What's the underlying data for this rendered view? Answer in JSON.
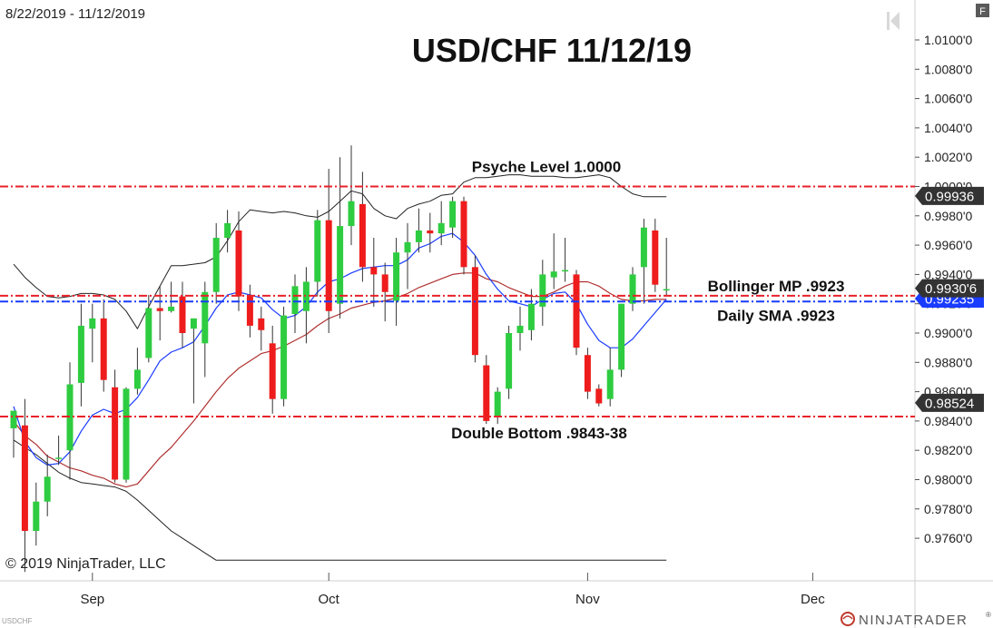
{
  "header": {
    "date_range": "8/22/2019 - 11/12/2019",
    "panel_button": "F",
    "copyright": "© 2019 NinjaTrader, LLC",
    "symbol_watermark": "USDCHF",
    "brand": "NINJATRADER",
    "brand_mark": "®"
  },
  "colors": {
    "up": "#2ecc40",
    "down": "#ee1c1c",
    "bollinger_band": "#222222",
    "bollinger_mid": "#b03030",
    "sma": "#1a3cff",
    "level_red": "#e8202a",
    "level_blue": "#1a3cff"
  },
  "chart_data": {
    "type": "candlestick",
    "title": "USD/CHF 11/12/19",
    "ylim": [
      0.9745,
      1.012
    ],
    "y_ticks": [
      {
        "value": 1.01,
        "label": "1.0100'0"
      },
      {
        "value": 1.008,
        "label": "1.0080'0"
      },
      {
        "value": 1.006,
        "label": "1.0060'0"
      },
      {
        "value": 1.004,
        "label": "1.0040'0"
      },
      {
        "value": 1.002,
        "label": "1.0020'0"
      },
      {
        "value": 1.0,
        "label": "1.0000'0"
      },
      {
        "value": 0.998,
        "label": "0.9980'0"
      },
      {
        "value": 0.996,
        "label": "0.9960'0"
      },
      {
        "value": 0.994,
        "label": "0.9940'0"
      },
      {
        "value": 0.992,
        "label": "0.9920'0"
      },
      {
        "value": 0.99,
        "label": "0.9900'0"
      },
      {
        "value": 0.988,
        "label": "0.9880'0"
      },
      {
        "value": 0.986,
        "label": "0.9860'0"
      },
      {
        "value": 0.984,
        "label": "0.9840'0"
      },
      {
        "value": 0.982,
        "label": "0.9820'0"
      },
      {
        "value": 0.98,
        "label": "0.9800'0"
      },
      {
        "value": 0.978,
        "label": "0.9780'0"
      },
      {
        "value": 0.976,
        "label": "0.9760'0"
      }
    ],
    "x_ticks": [
      {
        "index": 7,
        "label": "Sep"
      },
      {
        "index": 28,
        "label": "Oct"
      },
      {
        "index": 51,
        "label": "Nov"
      },
      {
        "index": 71,
        "label": "Dec"
      }
    ],
    "ohlc": [
      {
        "o": 0.9835,
        "h": 0.9845,
        "l": 0.9815,
        "c": 0.9847
      },
      {
        "o": 0.9837,
        "h": 0.9855,
        "l": 0.9737,
        "c": 0.9765
      },
      {
        "o": 0.9765,
        "h": 0.9798,
        "l": 0.9755,
        "c": 0.9785
      },
      {
        "o": 0.9785,
        "h": 0.9817,
        "l": 0.9775,
        "c": 0.9802
      },
      {
        "o": 0.9815,
        "h": 0.983,
        "l": 0.981,
        "c": 0.9815
      },
      {
        "o": 0.982,
        "h": 0.988,
        "l": 0.98,
        "c": 0.9865
      },
      {
        "o": 0.9866,
        "h": 0.992,
        "l": 0.985,
        "c": 0.9905
      },
      {
        "o": 0.9903,
        "h": 0.992,
        "l": 0.988,
        "c": 0.991
      },
      {
        "o": 0.991,
        "h": 0.9923,
        "l": 0.986,
        "c": 0.9868
      },
      {
        "o": 0.9863,
        "h": 0.9875,
        "l": 0.9798,
        "c": 0.98
      },
      {
        "o": 0.98,
        "h": 0.9863,
        "l": 0.9798,
        "c": 0.9862
      },
      {
        "o": 0.9862,
        "h": 0.989,
        "l": 0.9858,
        "c": 0.9875
      },
      {
        "o": 0.9883,
        "h": 0.9926,
        "l": 0.988,
        "c": 0.9917
      },
      {
        "o": 0.9917,
        "h": 0.9932,
        "l": 0.9895,
        "c": 0.9915
      },
      {
        "o": 0.9915,
        "h": 0.9935,
        "l": 0.9914,
        "c": 0.9918
      },
      {
        "o": 0.9925,
        "h": 0.9935,
        "l": 0.989,
        "c": 0.99
      },
      {
        "o": 0.9903,
        "h": 0.991,
        "l": 0.9852,
        "c": 0.991
      },
      {
        "o": 0.9893,
        "h": 0.9935,
        "l": 0.987,
        "c": 0.9928
      },
      {
        "o": 0.9928,
        "h": 0.9975,
        "l": 0.992,
        "c": 0.9965
      },
      {
        "o": 0.9965,
        "h": 0.9984,
        "l": 0.9955,
        "c": 0.9975
      },
      {
        "o": 0.997,
        "h": 0.9983,
        "l": 0.9915,
        "c": 0.9925
      },
      {
        "o": 0.9925,
        "h": 0.9933,
        "l": 0.9897,
        "c": 0.9905
      },
      {
        "o": 0.991,
        "h": 0.9918,
        "l": 0.9888,
        "c": 0.9902
      },
      {
        "o": 0.9893,
        "h": 0.9905,
        "l": 0.9845,
        "c": 0.9855
      },
      {
        "o": 0.9855,
        "h": 0.9918,
        "l": 0.985,
        "c": 0.9912
      },
      {
        "o": 0.9913,
        "h": 0.994,
        "l": 0.99,
        "c": 0.9932
      },
      {
        "o": 0.9915,
        "h": 0.9945,
        "l": 0.9893,
        "c": 0.9935
      },
      {
        "o": 0.9935,
        "h": 0.9984,
        "l": 0.9925,
        "c": 0.9977
      },
      {
        "o": 0.9977,
        "h": 1.0012,
        "l": 0.99,
        "c": 0.9915
      },
      {
        "o": 0.992,
        "h": 1.002,
        "l": 0.991,
        "c": 0.9973
      },
      {
        "o": 0.9973,
        "h": 1.0028,
        "l": 0.996,
        "c": 0.999
      },
      {
        "o": 0.9988,
        "h": 1.001,
        "l": 0.9935,
        "c": 0.9945
      },
      {
        "o": 0.9945,
        "h": 0.9965,
        "l": 0.9918,
        "c": 0.994
      },
      {
        "o": 0.994,
        "h": 0.9948,
        "l": 0.9908,
        "c": 0.9928
      },
      {
        "o": 0.9922,
        "h": 0.9965,
        "l": 0.9905,
        "c": 0.9955
      },
      {
        "o": 0.9955,
        "h": 0.9975,
        "l": 0.993,
        "c": 0.9962
      },
      {
        "o": 0.9962,
        "h": 0.9985,
        "l": 0.9955,
        "c": 0.997
      },
      {
        "o": 0.997,
        "h": 0.9982,
        "l": 0.9955,
        "c": 0.9968
      },
      {
        "o": 0.9968,
        "h": 0.999,
        "l": 0.996,
        "c": 0.9975
      },
      {
        "o": 0.9972,
        "h": 0.9993,
        "l": 0.9965,
        "c": 0.999
      },
      {
        "o": 0.999,
        "h": 0.9993,
        "l": 0.994,
        "c": 0.9945
      },
      {
        "o": 0.9945,
        "h": 0.9953,
        "l": 0.988,
        "c": 0.9885
      },
      {
        "o": 0.9878,
        "h": 0.9885,
        "l": 0.9838,
        "c": 0.984
      },
      {
        "o": 0.9843,
        "h": 0.9863,
        "l": 0.9838,
        "c": 0.986
      },
      {
        "o": 0.9862,
        "h": 0.9905,
        "l": 0.9855,
        "c": 0.99
      },
      {
        "o": 0.99,
        "h": 0.9918,
        "l": 0.9888,
        "c": 0.9905
      },
      {
        "o": 0.9902,
        "h": 0.993,
        "l": 0.9895,
        "c": 0.992
      },
      {
        "o": 0.9918,
        "h": 0.995,
        "l": 0.9905,
        "c": 0.994
      },
      {
        "o": 0.9938,
        "h": 0.9968,
        "l": 0.993,
        "c": 0.9942
      },
      {
        "o": 0.9942,
        "h": 0.9965,
        "l": 0.9935,
        "c": 0.9943
      },
      {
        "o": 0.994,
        "h": 0.9943,
        "l": 0.9885,
        "c": 0.989
      },
      {
        "o": 0.9885,
        "h": 0.989,
        "l": 0.9855,
        "c": 0.986
      },
      {
        "o": 0.9862,
        "h": 0.9865,
        "l": 0.985,
        "c": 0.9852
      },
      {
        "o": 0.9855,
        "h": 0.989,
        "l": 0.985,
        "c": 0.9875
      },
      {
        "o": 0.9875,
        "h": 0.992,
        "l": 0.987,
        "c": 0.992
      },
      {
        "o": 0.992,
        "h": 0.9945,
        "l": 0.9915,
        "c": 0.994
      },
      {
        "o": 0.9945,
        "h": 0.9978,
        "l": 0.992,
        "c": 0.9972
      },
      {
        "o": 0.997,
        "h": 0.9978,
        "l": 0.9928,
        "c": 0.9933
      },
      {
        "o": 0.993,
        "h": 0.9965,
        "l": 0.9925,
        "c": 0.993
      }
    ],
    "bollinger_upper": [
      0.9947,
      0.9938,
      0.9931,
      0.9925,
      0.9924,
      0.9925,
      0.9927,
      0.9927,
      0.9926,
      0.9923,
      0.9915,
      0.9903,
      0.9918,
      0.9932,
      0.9946,
      0.9946,
      0.9947,
      0.9948,
      0.9952,
      0.9963,
      0.9976,
      0.9984,
      0.9983,
      0.9982,
      0.9983,
      0.9982,
      0.998,
      0.9979,
      0.9983,
      0.999,
      0.9997,
      0.9995,
      0.9985,
      0.998,
      0.9978,
      0.9985,
      0.9988,
      0.999,
      0.9994,
      0.9995,
      1.0003,
      1.0006,
      1.0006,
      1.0007,
      1.0008,
      1.0008,
      1.0007,
      1.0007,
      1.0007,
      1.0006,
      1.0006,
      1.0007,
      1.0008,
      1.0006,
      1.0,
      0.9995,
      0.9993,
      0.9993,
      0.9993
    ],
    "bollinger_lower": [
      0.9827,
      0.9822,
      0.9817,
      0.9811,
      0.9805,
      0.9801,
      0.9798,
      0.9797,
      0.9796,
      0.9795,
      0.9792,
      0.9786,
      0.9779,
      0.9772,
      0.9765,
      0.976,
      0.9755,
      0.975,
      0.9745,
      0.9745,
      0.9745,
      0.9745,
      0.9745,
      0.9745,
      0.9745,
      0.9745,
      0.9745,
      0.9745,
      0.9745,
      0.9745,
      0.9745,
      0.9745,
      0.9745,
      0.9745,
      0.9745,
      0.9745,
      0.9745,
      0.9745,
      0.9745,
      0.9745,
      0.9745,
      0.9745,
      0.9745,
      0.9745,
      0.9745,
      0.9745,
      0.9745,
      0.9745,
      0.9745,
      0.9745,
      0.9745,
      0.9745,
      0.9745,
      0.9745,
      0.9745,
      0.9745,
      0.9745,
      0.9745,
      0.9745
    ],
    "bollinger_mid": [
      0.984,
      0.983,
      0.9824,
      0.9816,
      0.9812,
      0.9808,
      0.9806,
      0.9803,
      0.9801,
      0.9797,
      0.9795,
      0.9797,
      0.9806,
      0.9815,
      0.9822,
      0.9831,
      0.984,
      0.985,
      0.986,
      0.9869,
      0.9876,
      0.9881,
      0.9886,
      0.9888,
      0.9891,
      0.9895,
      0.9899,
      0.9905,
      0.991,
      0.9913,
      0.9917,
      0.9919,
      0.9921,
      0.9922,
      0.9924,
      0.9927,
      0.9931,
      0.9934,
      0.9937,
      0.994,
      0.9941,
      0.9941,
      0.9937,
      0.9935,
      0.9931,
      0.9928,
      0.9925,
      0.9925,
      0.9928,
      0.9932,
      0.9935,
      0.9935,
      0.9932,
      0.9927,
      0.9923,
      0.9922,
      0.9922,
      0.9923,
      0.9923
    ],
    "sma": [
      0.985,
      0.9826,
      0.9815,
      0.981,
      0.9811,
      0.9819,
      0.9833,
      0.9844,
      0.9848,
      0.9845,
      0.9848,
      0.9856,
      0.9868,
      0.9881,
      0.9887,
      0.989,
      0.9894,
      0.9905,
      0.9917,
      0.9926,
      0.9928,
      0.9926,
      0.9924,
      0.9916,
      0.991,
      0.9912,
      0.9918,
      0.9928,
      0.9935,
      0.9937,
      0.9941,
      0.9944,
      0.9945,
      0.9946,
      0.9946,
      0.995,
      0.9958,
      0.9961,
      0.9966,
      0.9968,
      0.9962,
      0.9953,
      0.994,
      0.993,
      0.9922,
      0.992,
      0.9918,
      0.9923,
      0.9927,
      0.9928,
      0.992,
      0.9906,
      0.9895,
      0.989,
      0.989,
      0.9896,
      0.9905,
      0.9914,
      0.9923
    ],
    "annotations": [
      {
        "label": "Psyche Level 1.0000",
        "price": 1.0,
        "color": "red"
      },
      {
        "label": "Bollinger MP .9923",
        "price": 0.99255,
        "color": "red"
      },
      {
        "label": "Daily SMA .9923",
        "price": 0.99215,
        "color": "blue"
      },
      {
        "label": "Double Bottom .9843-38",
        "price": 0.9843,
        "color": "red"
      }
    ],
    "price_flags": [
      {
        "value": 0.99936,
        "label": "0.99936",
        "style": "dark"
      },
      {
        "value": 0.99306,
        "label": "0.9930'6",
        "style": "dark"
      },
      {
        "value": 0.99235,
        "label": "0.99235",
        "style": "blue"
      },
      {
        "value": 0.98524,
        "label": "0.98524",
        "style": "dark"
      }
    ]
  }
}
